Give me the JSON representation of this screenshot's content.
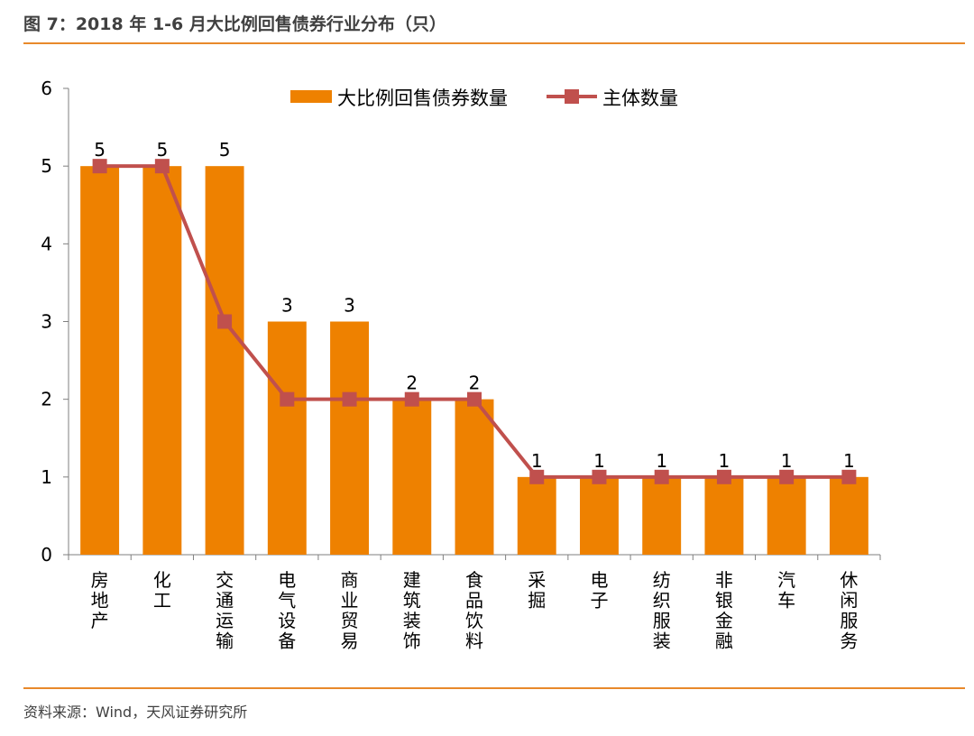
{
  "figure": {
    "title": "图 7：2018 年 1-6 月大比例回售债券行业分布（只）",
    "source": "资料来源：Wind，天风证券研究所"
  },
  "colors": {
    "bar": "#EE8100",
    "line": "#C0504D",
    "rule": "#E8892B",
    "axis": "#7F7F7F"
  },
  "chart_data": {
    "type": "bar",
    "categories": [
      "房地产",
      "化工",
      "交通运输",
      "电气设备",
      "商业贸易",
      "建筑装饰",
      "食品饮料",
      "采掘",
      "电子",
      "纺织服装",
      "非银金融",
      "汽车",
      "休闲服务"
    ],
    "series": [
      {
        "name": "大比例回售债券数量",
        "type": "bar",
        "values": [
          5,
          5,
          5,
          3,
          3,
          2,
          2,
          1,
          1,
          1,
          1,
          1,
          1
        ]
      },
      {
        "name": "主体数量",
        "type": "line",
        "marker": "square",
        "values": [
          5,
          5,
          3,
          2,
          2,
          2,
          2,
          1,
          1,
          1,
          1,
          1,
          1
        ]
      }
    ],
    "ylim": [
      0,
      6
    ],
    "yticks": [
      0,
      1,
      2,
      3,
      4,
      5,
      6
    ],
    "data_labels": "bar-series",
    "legend": "top-center",
    "grid": false
  }
}
